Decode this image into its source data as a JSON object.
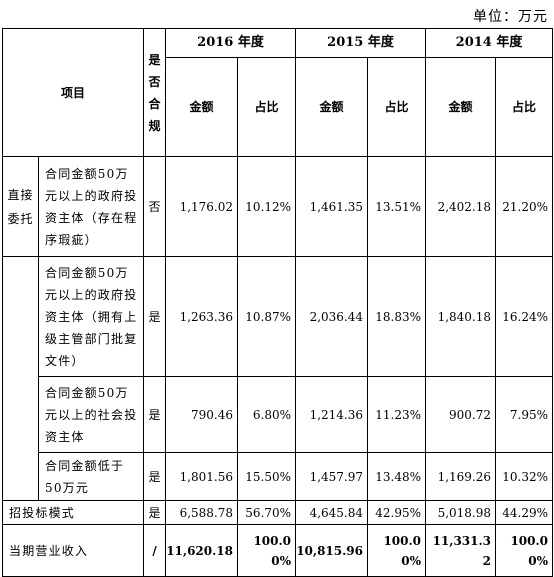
{
  "unit_label": "单位：万元",
  "headers": {
    "item": "项目",
    "compliant": "是否合规",
    "years": [
      "2016 年度",
      "2015 年度",
      "2014 年度"
    ],
    "amount": "金额",
    "ratio": "占比"
  },
  "category_direct": "直接委托",
  "rows": [
    {
      "desc": "合同金额50万元以上的政府投资主体（存在程序瑕疵）",
      "compliant": "否",
      "v": [
        "1,176.02",
        "10.12%",
        "1,461.35",
        "13.51%",
        "2,402.18",
        "21.20%"
      ]
    },
    {
      "desc": "合同金额50万元以上的政府投资主体（拥有上级主管部门批复文件）",
      "compliant": "是",
      "v": [
        "1,263.36",
        "10.87%",
        "2,036.44",
        "18.83%",
        "1,840.18",
        "16.24%"
      ]
    },
    {
      "desc": "合同金额50万元以上的社会投资主体",
      "compliant": "是",
      "v": [
        "790.46",
        "6.80%",
        "1,214.36",
        "11.23%",
        "900.72",
        "7.95%"
      ]
    },
    {
      "desc": "合同金额低于50万元",
      "compliant": "是",
      "v": [
        "1,801.56",
        "15.50%",
        "1,457.97",
        "13.48%",
        "1,169.26",
        "10.32%"
      ]
    }
  ],
  "tender": {
    "label": "招投标模式",
    "compliant": "是",
    "v": [
      "6,588.78",
      "56.70%",
      "4,645.84",
      "42.95%",
      "5,018.98",
      "44.29%"
    ]
  },
  "total": {
    "label": "当期营业收入",
    "compliant": "/",
    "v": [
      "11,620.18",
      "100.00%",
      "10,815.96",
      "100.00%",
      "11,331.32",
      "100.00%"
    ]
  }
}
